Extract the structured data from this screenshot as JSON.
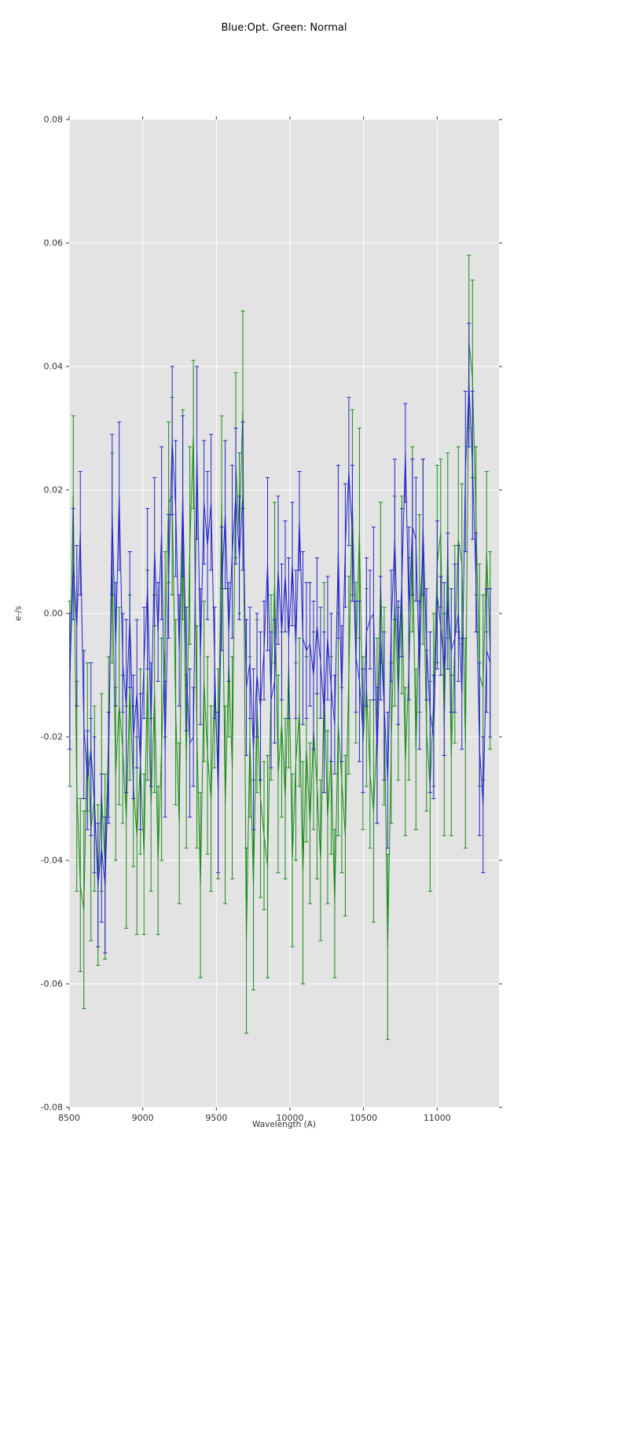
{
  "chart_data": {
    "type": "line",
    "title": "Blue:Opt. Green: Normal",
    "xlabel": "Wavelength (A)",
    "ylabel": "e-/s",
    "xlim": [
      8500,
      11420
    ],
    "ylim": [
      -0.08,
      0.08
    ],
    "grid": true,
    "legend": "none",
    "background": "#e3e3e3",
    "grid_color": "#ffffff",
    "tick_color": "#333333",
    "x_ticks": [
      8500,
      9000,
      9500,
      10000,
      10500,
      11000
    ],
    "x_tick_labels": [
      "8500",
      "9000",
      "9500",
      "10000",
      "10500",
      "11000"
    ],
    "y_ticks": [
      -0.08,
      -0.06,
      -0.04,
      -0.02,
      0.0,
      0.02,
      0.04,
      0.06,
      0.08
    ],
    "y_tick_labels": [
      "-0.08",
      "-0.06",
      "-0.04",
      "-0.02",
      "0.00",
      "0.02",
      "0.04",
      "0.06",
      "0.08"
    ],
    "x": [
      8504,
      8528,
      8552,
      8576,
      8600,
      8624,
      8648,
      8672,
      8696,
      8720,
      8744,
      8768,
      8792,
      8816,
      8840,
      8864,
      8888,
      8912,
      8936,
      8960,
      8984,
      9008,
      9032,
      9056,
      9080,
      9104,
      9128,
      9152,
      9176,
      9200,
      9224,
      9248,
      9272,
      9296,
      9320,
      9344,
      9368,
      9392,
      9416,
      9440,
      9464,
      9488,
      9512,
      9536,
      9560,
      9584,
      9608,
      9632,
      9656,
      9680,
      9704,
      9728,
      9752,
      9776,
      9800,
      9824,
      9848,
      9872,
      9896,
      9920,
      9944,
      9968,
      9992,
      10016,
      10040,
      10064,
      10088,
      10112,
      10136,
      10160,
      10184,
      10208,
      10232,
      10256,
      10280,
      10304,
      10328,
      10352,
      10376,
      10400,
      10424,
      10448,
      10472,
      10496,
      10520,
      10544,
      10568,
      10592,
      10616,
      10640,
      10664,
      10688,
      10712,
      10736,
      10760,
      10784,
      10808,
      10832,
      10856,
      10880,
      10904,
      10928,
      10952,
      10976,
      11000,
      11024,
      11048,
      11072,
      11096,
      11120,
      11144,
      11168,
      11192,
      11216,
      11240,
      11264,
      11288,
      11312,
      11336,
      11360
    ],
    "series": [
      {
        "name": "Normal",
        "color": "#168a16",
        "y": [
          -0.013,
          0.019,
          -0.028,
          -0.044,
          -0.048,
          -0.02,
          -0.035,
          -0.03,
          -0.044,
          -0.029,
          -0.041,
          -0.02,
          0.009,
          -0.026,
          -0.015,
          -0.022,
          -0.033,
          -0.012,
          -0.028,
          -0.036,
          -0.024,
          -0.039,
          -0.01,
          -0.031,
          -0.013,
          -0.04,
          -0.022,
          -0.005,
          0.018,
          0.019,
          -0.016,
          -0.034,
          0.016,
          -0.024,
          0.011,
          0.029,
          -0.02,
          -0.044,
          -0.011,
          -0.023,
          -0.03,
          -0.012,
          -0.026,
          0.018,
          -0.031,
          -0.008,
          -0.025,
          0.024,
          0.013,
          0.033,
          -0.053,
          -0.02,
          -0.044,
          -0.015,
          -0.03,
          -0.036,
          -0.041,
          -0.012,
          0.005,
          -0.026,
          -0.018,
          -0.03,
          -0.008,
          -0.04,
          -0.024,
          -0.016,
          -0.042,
          -0.022,
          -0.034,
          -0.019,
          -0.028,
          -0.04,
          -0.012,
          -0.033,
          -0.023,
          -0.047,
          -0.018,
          -0.027,
          -0.036,
          -0.01,
          0.018,
          -0.008,
          0.013,
          -0.021,
          -0.012,
          -0.026,
          -0.032,
          -0.019,
          0.005,
          -0.015,
          -0.054,
          -0.021,
          0.002,
          -0.013,
          0.003,
          -0.024,
          -0.009,
          0.012,
          -0.022,
          0.0,
          0.01,
          -0.019,
          -0.028,
          -0.014,
          0.008,
          0.013,
          -0.018,
          0.011,
          -0.023,
          -0.005,
          0.012,
          0.008,
          -0.021,
          0.044,
          0.038,
          0.015,
          -0.01,
          -0.012,
          0.01,
          -0.006
        ],
        "yerr": [
          0.015,
          0.013,
          0.017,
          0.014,
          0.016,
          0.012,
          0.018,
          0.015,
          0.013,
          0.016,
          0.015,
          0.013,
          0.017,
          0.014,
          0.016,
          0.012,
          0.018,
          0.015,
          0.013,
          0.016,
          0.015,
          0.013,
          0.017,
          0.014,
          0.016,
          0.012,
          0.018,
          0.015,
          0.013,
          0.016,
          0.015,
          0.013,
          0.017,
          0.014,
          0.016,
          0.012,
          0.018,
          0.015,
          0.013,
          0.016,
          0.015,
          0.013,
          0.017,
          0.014,
          0.016,
          0.012,
          0.018,
          0.015,
          0.013,
          0.016,
          0.015,
          0.013,
          0.017,
          0.014,
          0.016,
          0.012,
          0.018,
          0.015,
          0.013,
          0.016,
          0.015,
          0.013,
          0.017,
          0.014,
          0.016,
          0.012,
          0.018,
          0.015,
          0.013,
          0.016,
          0.015,
          0.013,
          0.017,
          0.014,
          0.016,
          0.012,
          0.018,
          0.015,
          0.013,
          0.016,
          0.015,
          0.013,
          0.017,
          0.014,
          0.016,
          0.012,
          0.018,
          0.015,
          0.013,
          0.016,
          0.015,
          0.013,
          0.017,
          0.014,
          0.016,
          0.012,
          0.018,
          0.015,
          0.013,
          0.016,
          0.015,
          0.013,
          0.017,
          0.014,
          0.016,
          0.012,
          0.018,
          0.015,
          0.013,
          0.016,
          0.015,
          0.013,
          0.017,
          0.014,
          0.016,
          0.012,
          0.018,
          0.015,
          0.013,
          0.016
        ]
      },
      {
        "name": "Opt",
        "color": "#2323cb",
        "y": [
          -0.011,
          0.008,
          -0.002,
          0.013,
          -0.018,
          -0.027,
          -0.022,
          -0.031,
          -0.044,
          -0.038,
          -0.044,
          -0.025,
          0.016,
          -0.005,
          0.019,
          -0.008,
          -0.015,
          -0.001,
          -0.02,
          -0.013,
          -0.024,
          -0.008,
          0.004,
          -0.018,
          0.01,
          -0.003,
          0.013,
          -0.022,
          0.006,
          0.028,
          0.017,
          -0.006,
          0.019,
          -0.009,
          -0.021,
          -0.02,
          0.026,
          -0.007,
          0.018,
          0.011,
          0.018,
          -0.008,
          -0.029,
          0.004,
          0.016,
          -0.003,
          0.01,
          0.019,
          0.009,
          0.019,
          -0.012,
          -0.008,
          -0.022,
          -0.01,
          -0.015,
          -0.006,
          0.008,
          -0.014,
          -0.011,
          0.007,
          -0.003,
          0.006,
          -0.004,
          0.008,
          -0.005,
          0.015,
          -0.004,
          -0.006,
          -0.005,
          -0.01,
          -0.002,
          -0.008,
          -0.016,
          -0.004,
          -0.012,
          -0.018,
          0.01,
          -0.013,
          0.011,
          0.023,
          0.013,
          -0.007,
          -0.011,
          -0.019,
          -0.003,
          -0.001,
          0.0,
          -0.023,
          -0.004,
          -0.015,
          -0.027,
          -0.002,
          0.012,
          -0.008,
          0.005,
          0.026,
          0.0,
          0.014,
          0.012,
          -0.01,
          0.014,
          -0.005,
          -0.016,
          -0.02,
          0.003,
          -0.002,
          -0.009,
          0.002,
          -0.006,
          -0.004,
          0.0,
          -0.013,
          0.023,
          0.037,
          0.024,
          0.005,
          -0.022,
          -0.031,
          -0.006,
          -0.008
        ],
        "yerr": [
          0.011,
          0.009,
          0.013,
          0.01,
          0.012,
          0.008,
          0.014,
          0.011,
          0.01,
          0.012,
          0.011,
          0.009,
          0.013,
          0.01,
          0.012,
          0.008,
          0.014,
          0.011,
          0.01,
          0.012,
          0.011,
          0.009,
          0.013,
          0.01,
          0.012,
          0.008,
          0.014,
          0.011,
          0.01,
          0.012,
          0.011,
          0.009,
          0.013,
          0.01,
          0.012,
          0.008,
          0.014,
          0.011,
          0.01,
          0.012,
          0.011,
          0.009,
          0.013,
          0.01,
          0.012,
          0.008,
          0.014,
          0.011,
          0.01,
          0.012,
          0.011,
          0.009,
          0.013,
          0.01,
          0.012,
          0.008,
          0.014,
          0.011,
          0.01,
          0.012,
          0.011,
          0.009,
          0.013,
          0.01,
          0.012,
          0.008,
          0.014,
          0.011,
          0.01,
          0.012,
          0.011,
          0.009,
          0.013,
          0.01,
          0.012,
          0.008,
          0.014,
          0.011,
          0.01,
          0.012,
          0.011,
          0.009,
          0.013,
          0.01,
          0.012,
          0.008,
          0.014,
          0.011,
          0.01,
          0.012,
          0.011,
          0.009,
          0.013,
          0.01,
          0.012,
          0.008,
          0.014,
          0.011,
          0.01,
          0.012,
          0.011,
          0.009,
          0.013,
          0.01,
          0.012,
          0.008,
          0.014,
          0.011,
          0.01,
          0.012,
          0.011,
          0.009,
          0.013,
          0.01,
          0.012,
          0.008,
          0.014,
          0.011,
          0.01,
          0.012
        ]
      }
    ]
  }
}
